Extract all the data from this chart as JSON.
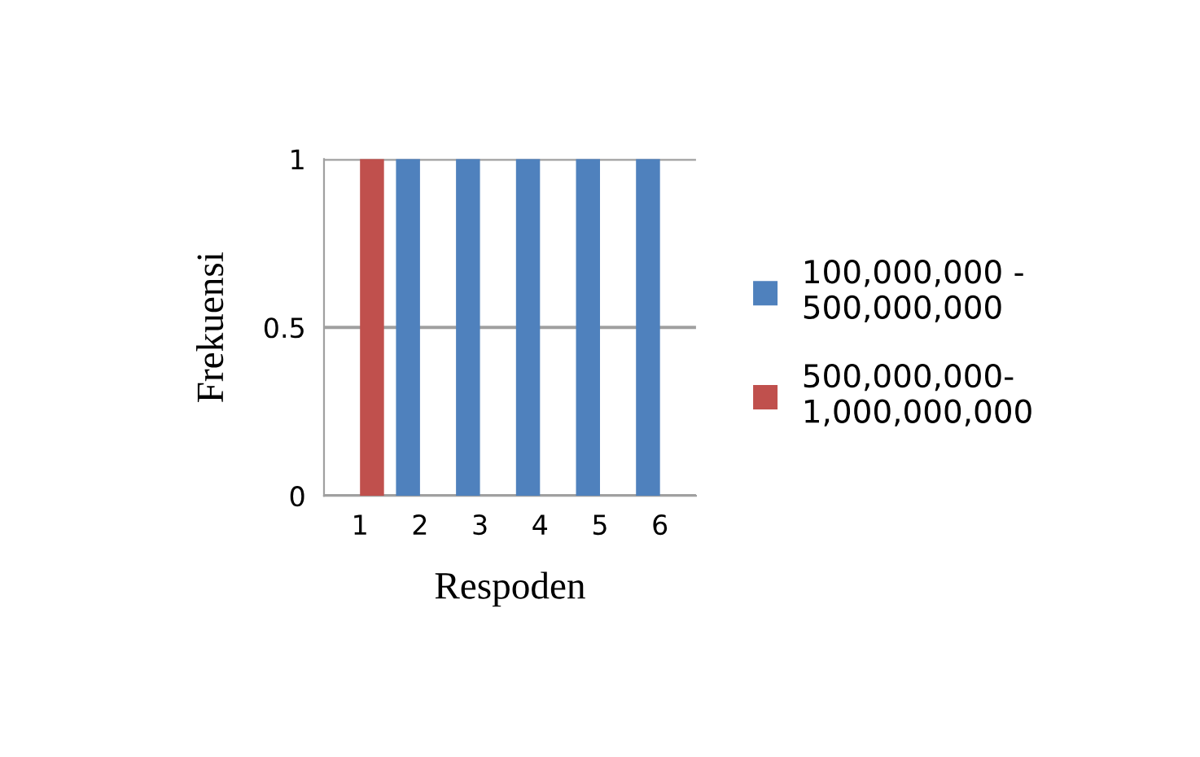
{
  "chart_data": {
    "type": "bar",
    "xlabel": "Respoden",
    "ylabel": "Frekuensi",
    "categories": [
      "1",
      "2",
      "3",
      "4",
      "5",
      "6"
    ],
    "series": [
      {
        "name": "100,000,000 -\n500,000,000",
        "color": "#4f81bd",
        "values": [
          0,
          1,
          1,
          1,
          1,
          1
        ]
      },
      {
        "name": "500,000,000-\n1,000,000,000",
        "color": "#c0504d",
        "values": [
          1,
          0,
          0,
          0,
          0,
          0
        ]
      }
    ],
    "ylim": [
      0,
      1
    ],
    "yticks": [
      0,
      0.5,
      1
    ],
    "grid": "y",
    "legend": "right"
  }
}
